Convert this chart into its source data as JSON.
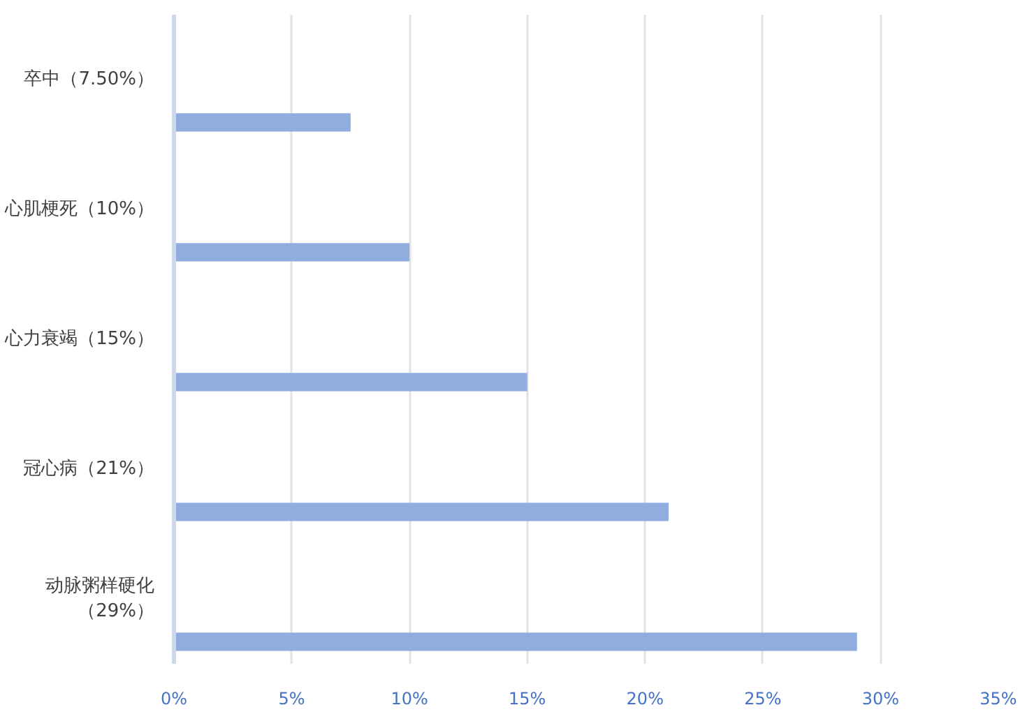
{
  "chart_data": {
    "type": "bar",
    "orientation": "horizontal",
    "categories": [
      "卒中（7.50%）",
      "心肌梗死（10%）",
      "心力衰竭（15%）",
      "冠心病（21%）",
      "动脉粥样硬化（29%）"
    ],
    "values": [
      7.5,
      10,
      15,
      21,
      29
    ],
    "color": "#91acdf",
    "xlim": [
      0,
      35
    ],
    "xticks": [
      {
        "value": 0,
        "label": "0%"
      },
      {
        "value": 5,
        "label": "5%"
      },
      {
        "value": 10,
        "label": "10%"
      },
      {
        "value": 15,
        "label": "15%"
      },
      {
        "value": 20,
        "label": "20%"
      },
      {
        "value": 25,
        "label": "25%"
      },
      {
        "value": 30,
        "label": "30%"
      },
      {
        "value": 35,
        "label": "35%"
      }
    ],
    "grid": "x"
  }
}
